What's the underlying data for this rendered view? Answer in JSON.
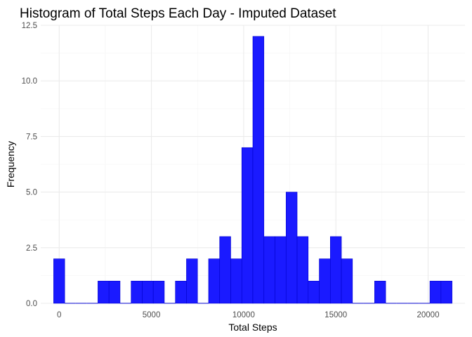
{
  "chart_data": {
    "type": "bar",
    "title": "Histogram of Total Steps Each Day - Imputed Dataset",
    "xlabel": "Total Steps",
    "ylabel": "Frequency",
    "xlim": [
      -1000,
      22000
    ],
    "ylim": [
      0,
      12.5
    ],
    "x_ticks": [
      0,
      5000,
      10000,
      15000,
      20000
    ],
    "y_ticks": [
      0.0,
      2.5,
      5.0,
      7.5,
      10.0,
      12.5
    ],
    "x_tick_labels": [
      "0",
      "5000",
      "10000",
      "15000",
      "20000"
    ],
    "y_tick_labels": [
      "0.0",
      "2.5",
      "5.0",
      "7.5",
      "10.0",
      "12.5"
    ],
    "bin_width": 600,
    "bins": [
      {
        "start": -300,
        "count": 2
      },
      {
        "start": 300,
        "count": 0
      },
      {
        "start": 900,
        "count": 0
      },
      {
        "start": 1500,
        "count": 0
      },
      {
        "start": 2100,
        "count": 1
      },
      {
        "start": 2700,
        "count": 1
      },
      {
        "start": 3300,
        "count": 0
      },
      {
        "start": 3900,
        "count": 1
      },
      {
        "start": 4500,
        "count": 1
      },
      {
        "start": 5100,
        "count": 1
      },
      {
        "start": 5700,
        "count": 0
      },
      {
        "start": 6300,
        "count": 1
      },
      {
        "start": 6900,
        "count": 2
      },
      {
        "start": 7500,
        "count": 0
      },
      {
        "start": 8100,
        "count": 2
      },
      {
        "start": 8700,
        "count": 3
      },
      {
        "start": 9300,
        "count": 2
      },
      {
        "start": 9900,
        "count": 7
      },
      {
        "start": 10500,
        "count": 12
      },
      {
        "start": 11100,
        "count": 3
      },
      {
        "start": 11700,
        "count": 3
      },
      {
        "start": 12300,
        "count": 5
      },
      {
        "start": 12900,
        "count": 3
      },
      {
        "start": 13500,
        "count": 1
      },
      {
        "start": 14100,
        "count": 2
      },
      {
        "start": 14700,
        "count": 3
      },
      {
        "start": 15300,
        "count": 2
      },
      {
        "start": 15900,
        "count": 0
      },
      {
        "start": 16500,
        "count": 0
      },
      {
        "start": 17100,
        "count": 1
      },
      {
        "start": 17700,
        "count": 0
      },
      {
        "start": 18300,
        "count": 0
      },
      {
        "start": 18900,
        "count": 0
      },
      {
        "start": 19500,
        "count": 0
      },
      {
        "start": 20100,
        "count": 1
      },
      {
        "start": 20700,
        "count": 1
      }
    ],
    "bar_fill": "#1a1aff",
    "bar_outline": "#0000cd",
    "grid": true,
    "legend": "none"
  }
}
